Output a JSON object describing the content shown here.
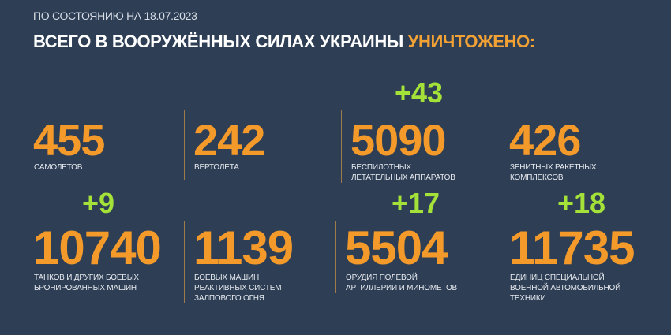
{
  "header": {
    "date_line": "ПО СОСТОЯНИЮ НА 18.07.2023",
    "title_main": "ВСЕГО В ВООРУЖЁННЫХ СИЛАХ УКРАИНЫ",
    "title_highlight": "УНИЧТОЖЕНО:"
  },
  "colors": {
    "background": "#2d3e55",
    "number": "#f39a2b",
    "delta": "#a4e23a",
    "highlight": "#f2a235"
  },
  "stats": [
    {
      "value": "455",
      "label_lines": [
        "САМОЛЕТОВ"
      ],
      "delta": ""
    },
    {
      "value": "242",
      "label_lines": [
        "ВЕРТОЛЕТА"
      ],
      "delta": ""
    },
    {
      "value": "5090",
      "label_lines": [
        "БЕСПИЛОТНЫХ",
        "ЛЕТАТЕЛЬНЫХ АППАРАТОВ"
      ],
      "delta": "+43"
    },
    {
      "value": "426",
      "label_lines": [
        "ЗЕНИТНЫХ РАКЕТНЫХ",
        "КОМПЛЕКСОВ"
      ],
      "delta": ""
    },
    {
      "value": "10740",
      "label_lines": [
        "ТАНКОВ И ДРУГИХ БОЕВЫХ",
        "БРОНИРОВАННЫХ МАШИН"
      ],
      "delta": "+9"
    },
    {
      "value": "1139",
      "label_lines": [
        "БОЕВЫХ МАШИН",
        "РЕАКТИВНЫХ СИСТЕМ",
        "ЗАЛПОВОГО ОГНЯ"
      ],
      "delta": ""
    },
    {
      "value": "5504",
      "label_lines": [
        "ОРУДИЯ ПОЛЕВОЙ",
        "АРТИЛЛЕРИИ И МИНОМЕТОВ"
      ],
      "delta": "+17"
    },
    {
      "value": "11735",
      "label_lines": [
        "ЕДИНИЦ СПЕЦИАЛЬНОЙ",
        "ВОЕННОЙ АВТОМОБИЛЬНОЙ",
        "ТЕХНИКИ"
      ],
      "delta": "+18"
    }
  ]
}
